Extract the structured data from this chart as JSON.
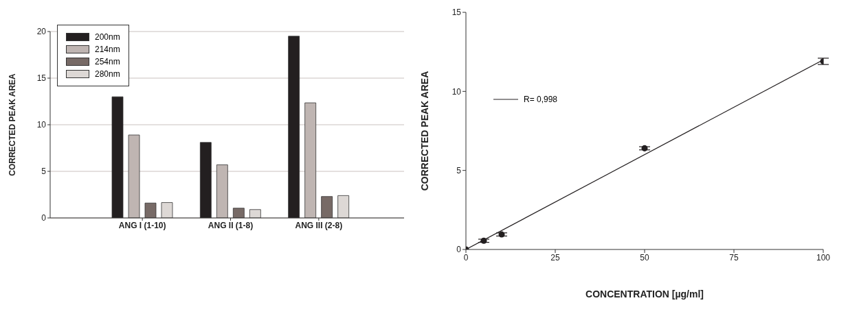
{
  "chart_data": [
    {
      "type": "bar",
      "ylabel": "CORRECTED PEAK AREA",
      "categories": [
        "ANG I (1-10)",
        "ANG II (1-8)",
        "ANG III (2-8)"
      ],
      "series": [
        {
          "name": "200nm",
          "color": "#231f20",
          "values": [
            13.0,
            8.1,
            19.5
          ]
        },
        {
          "name": "214nm",
          "color": "#bfb5b2",
          "values": [
            8.9,
            5.7,
            12.35
          ]
        },
        {
          "name": "254nm",
          "color": "#776a66",
          "values": [
            1.6,
            1.05,
            2.3
          ]
        },
        {
          "name": "280nm",
          "color": "#ddd8d5",
          "values": [
            1.65,
            0.9,
            2.4
          ]
        }
      ],
      "ylim": [
        0,
        20
      ],
      "yticks": [
        0,
        5,
        10,
        15,
        20
      ],
      "grid": "y",
      "legend": "top left"
    },
    {
      "type": "scatter",
      "xlabel": "CONCENTRATION [µg/ml]",
      "ylabel": "CORRECTED PEAK AREA",
      "x": [
        0,
        5,
        10,
        50,
        100
      ],
      "series": [
        {
          "type": "scatter",
          "color": "#231f20",
          "values": [
            0,
            0.55,
            0.95,
            6.4,
            11.9
          ],
          "errors": [
            null,
            0.1,
            0.1,
            0.1,
            0.2
          ],
          "marker": "circle"
        },
        {
          "type": "line",
          "name": "R= 0,998",
          "color": "#231f20",
          "x": [
            0,
            100
          ],
          "values": [
            0,
            12
          ],
          "line_style": "solid",
          "marker": "none"
        }
      ],
      "xlim": [
        0,
        100
      ],
      "xticks": [
        0,
        25,
        50,
        75,
        100
      ],
      "ylim": [
        0,
        15
      ],
      "yticks": [
        0,
        5,
        10,
        15
      ],
      "legend": "top left"
    }
  ]
}
